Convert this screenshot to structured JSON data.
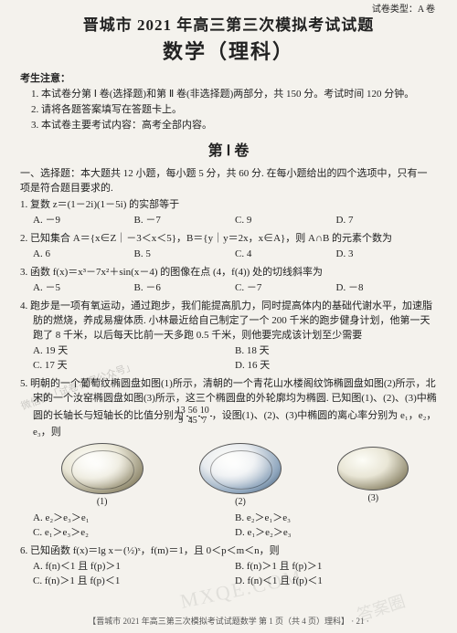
{
  "meta": {
    "top_right": "试卷类型：A 卷",
    "header_line1": "晋城市 2021 年高三第三次模拟考试试题",
    "header_line2": "数学（理科）",
    "notice_title": "考生注意：",
    "notices": [
      "1. 本试卷分第 Ⅰ 卷(选择题)和第 Ⅱ 卷(非选择题)两部分，共 150 分。考试时间 120 分钟。",
      "2. 请将各题答案填写在答题卡上。",
      "3. 本试卷主要考试内容：高考全部内容。"
    ],
    "section1": "第 Ⅰ 卷",
    "part1": "一、选择题：本大题共 12 小题，每小题 5 分，共 60 分. 在每小题给出的四个选项中，只有一项是符合题目要求的.",
    "footer": "【晋城市 2021 年高三第三次模拟考试试题数学  第 1 页（共 4 页）理科】  · 21 ·",
    "watermark1": "MXQE.COM",
    "watermark2": "答案圈",
    "faint": "微信搜「试卷答案公众号」"
  },
  "q1": {
    "text": "1. 复数 z＝(1－2i)(1－5i) 的实部等于",
    "a": "A. －9",
    "b": "B. －7",
    "c": "C. 9",
    "d": "D. 7"
  },
  "q2": {
    "text": "2. 已知集合 A＝{x∈Z｜－3＜x＜5}，B＝{y｜y＝2x，x∈A}，则 A∩B 的元素个数为",
    "a": "A. 6",
    "b": "B. 5",
    "c": "C. 4",
    "d": "D. 3"
  },
  "q3": {
    "text": "3. 函数 f(x)＝x³－7x²＋sin(x－4) 的图像在点 (4，f(4)) 处的切线斜率为",
    "a": "A. －5",
    "b": "B. －6",
    "c": "C. －7",
    "d": "D. －8"
  },
  "q4": {
    "text": "4. 跑步是一项有氧运动，通过跑步，我们能提高肌力，同时提高体内的基础代谢水平，加速脂肪的燃烧，养成易瘦体质. 小林最近给自己制定了一个 200 千米的跑步健身计划，他第一天跑了 8 千米，以后每天比前一天多跑 0.5 千米，则他要完成该计划至少需要",
    "a": "A. 19 天",
    "b": "B. 18 天",
    "c": "C. 17 天",
    "d": "D. 16 天"
  },
  "q5": {
    "text1": "5. 明朝的一个葡萄纹椭圆盘如图(1)所示，清朝的一个青花山水楼阁纹饰椭圆盘如图(2)所示，北宋的一个汝窑椭圆盘如图(3)所示，这三个椭圆盘的外轮廓均为椭圆. 已知图(1)、(2)、(3)中椭圆的长轴长与短轴长的比值分别为",
    "frac1n": "13",
    "frac1d": "9",
    "frac2n": "56",
    "frac2d": "45",
    "frac3n": "10",
    "frac3d": "7",
    "text2": "，设图(1)、(2)、(3)中椭圆的离心率分别为 e₁，e₂，e₃，则",
    "cap1": "(1)",
    "cap2": "(2)",
    "cap3": "(3)",
    "a": "A. e₂＞e₃＞e₁",
    "b": "B. e₂＞e₁＞e₃",
    "c": "C. e₁＞e₃＞e₂",
    "d": "D. e₁＞e₂＞e₃"
  },
  "q6": {
    "text": "6. 已知函数 f(x)＝lg x－(½)ˣ，f(m)＝1，且 0＜p＜m＜n，则",
    "a": "A. f(n)＜1 且 f(p)＞1",
    "b": "B. f(n)＞1 且 f(p)＞1",
    "c": "C. f(n)＞1 且 f(p)＜1",
    "d": "D. f(n)＜1 且 f(p)＜1"
  }
}
